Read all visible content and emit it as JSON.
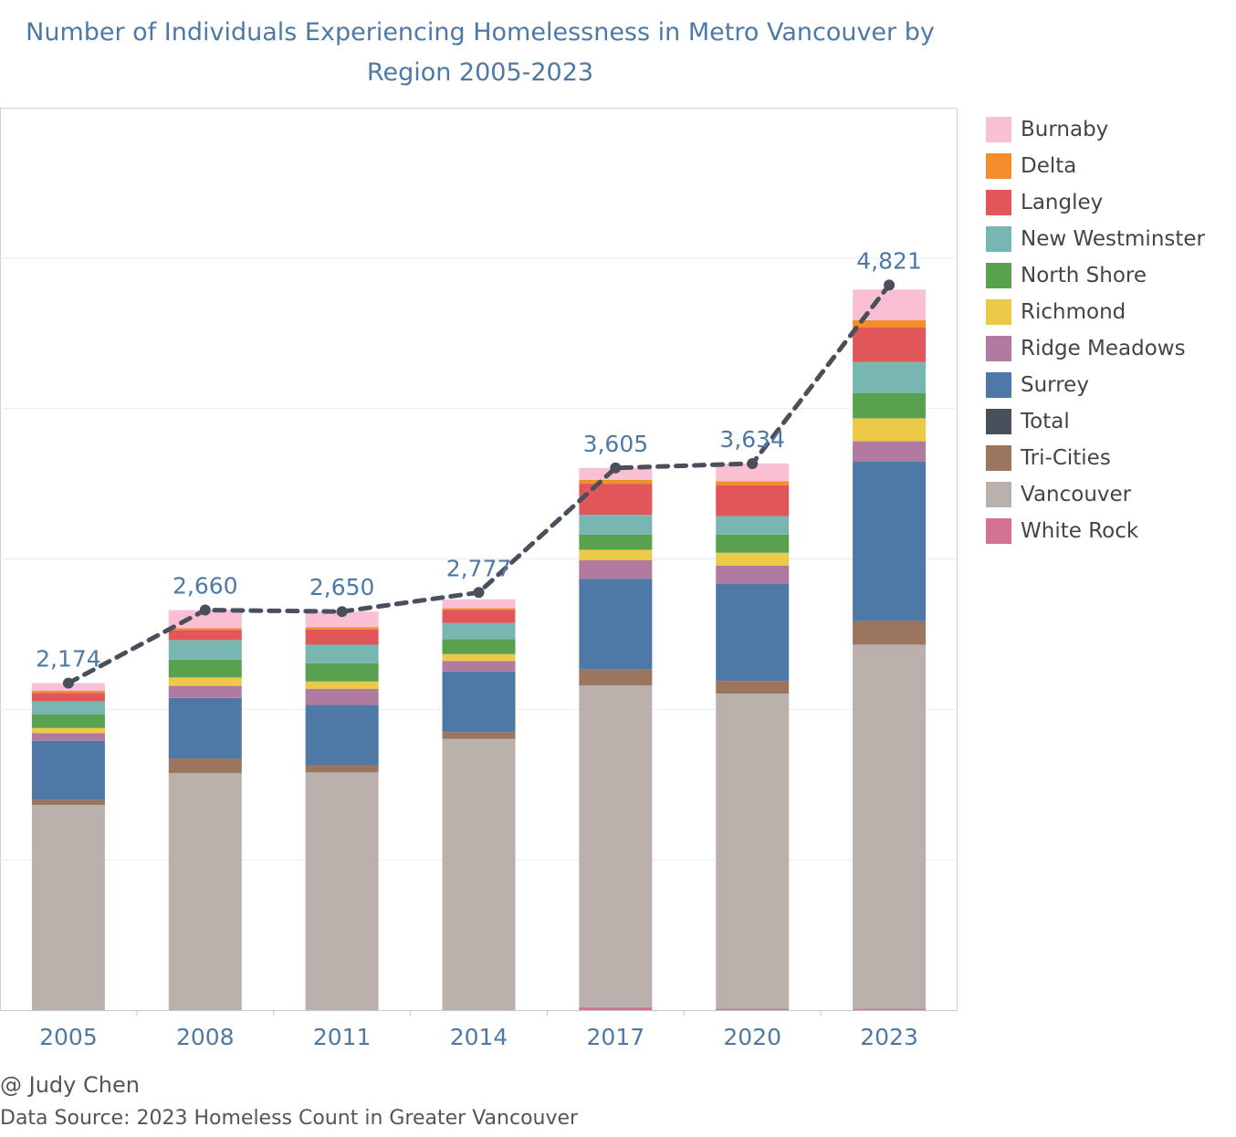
{
  "title_lines": [
    "Number of Individuals Experiencing Homelessness in Metro Vancouver by",
    "Region 2005-2023"
  ],
  "credit": "@ Judy Chen",
  "source": "Data Source: 2023 Homeless Count in Greater Vancouver",
  "legend": [
    {
      "name": "Burnaby",
      "color": "#fabfd2"
    },
    {
      "name": "Delta",
      "color": "#f28e2b"
    },
    {
      "name": "Langley",
      "color": "#e15759"
    },
    {
      "name": "New Westminster",
      "color": "#76b7b2"
    },
    {
      "name": "North Shore",
      "color": "#59a14f"
    },
    {
      "name": "Richmond",
      "color": "#edc948"
    },
    {
      "name": "Ridge Meadows",
      "color": "#b07aa1"
    },
    {
      "name": "Surrey",
      "color": "#4e79a7"
    },
    {
      "name": "Total",
      "color": "#4a4f5c"
    },
    {
      "name": "Tri-Cities",
      "color": "#9c755f"
    },
    {
      "name": "Vancouver",
      "color": "#bab0ac"
    },
    {
      "name": "White Rock",
      "color": "#d37295"
    }
  ],
  "chart_data": {
    "type": "bar",
    "stacked": true,
    "title": "Number of Individuals Experiencing Homelessness in Metro Vancouver by Region 2005-2023",
    "categories": [
      "2005",
      "2008",
      "2011",
      "2014",
      "2017",
      "2020",
      "2023"
    ],
    "ylim": [
      0,
      6000
    ],
    "grid": true,
    "legend_position": "right",
    "series": [
      {
        "name": "White Rock",
        "color": "#d37295",
        "values": [
          0,
          0,
          0,
          0,
          20,
          10,
          10
        ]
      },
      {
        "name": "Vancouver",
        "color": "#bab0ac",
        "values": [
          1364,
          1576,
          1581,
          1803,
          2138,
          2095,
          2420
        ]
      },
      {
        "name": "Tri-Cities",
        "color": "#9c755f",
        "values": [
          35,
          98,
          48,
          46,
          107,
          84,
          156
        ]
      },
      {
        "name": "Surrey",
        "color": "#4e79a7",
        "values": [
          392,
          402,
          400,
          403,
          602,
          644,
          1060
        ]
      },
      {
        "name": "Ridge Meadows",
        "color": "#b07aa1",
        "values": [
          50,
          80,
          108,
          70,
          124,
          123,
          136
        ]
      },
      {
        "name": "Richmond",
        "color": "#edc948",
        "values": [
          35,
          56,
          48,
          45,
          70,
          85,
          153
        ]
      },
      {
        "name": "North Shore",
        "color": "#59a14f",
        "values": [
          90,
          119,
          121,
          100,
          100,
          121,
          168
        ]
      },
      {
        "name": "New Westminster",
        "color": "#76b7b2",
        "values": [
          88,
          130,
          124,
          107,
          133,
          122,
          206
        ]
      },
      {
        "name": "Langley",
        "color": "#e15759",
        "values": [
          55,
          67,
          100,
          88,
          206,
          205,
          229
        ]
      },
      {
        "name": "Delta",
        "color": "#f28e2b",
        "values": [
          15,
          12,
          15,
          10,
          25,
          27,
          49
        ]
      },
      {
        "name": "Burnaby",
        "color": "#fabfd2",
        "values": [
          50,
          120,
          105,
          60,
          80,
          118,
          204
        ]
      }
    ],
    "line": {
      "name": "Total",
      "color": "#4a4f5c",
      "values": [
        2174,
        2660,
        2650,
        2777,
        3605,
        3634,
        4821
      ]
    }
  }
}
